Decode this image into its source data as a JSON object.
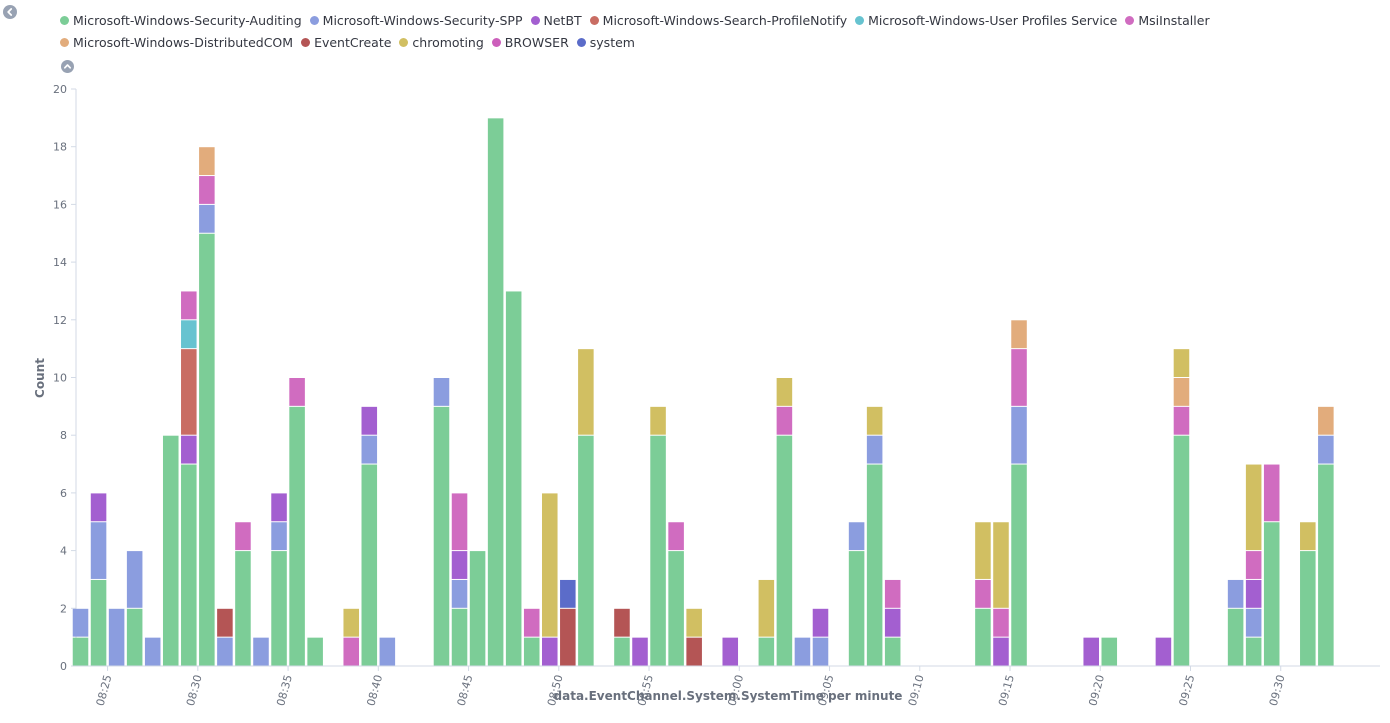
{
  "chart_data": {
    "type": "bar",
    "stacked": true,
    "title": "",
    "xlabel": "data.EventChannel.System.SystemTime per minute",
    "ylabel": "Count",
    "ylim": [
      0,
      20
    ],
    "yticks": [
      0,
      2,
      4,
      6,
      8,
      10,
      12,
      14,
      16,
      18,
      20
    ],
    "xlim": [
      8.25,
      80.5
    ],
    "xticks": [
      {
        "pos": 10,
        "label": "08:25"
      },
      {
        "pos": 15,
        "label": "08:30"
      },
      {
        "pos": 20,
        "label": "08:35"
      },
      {
        "pos": 25,
        "label": "08:40"
      },
      {
        "pos": 30,
        "label": "08:45"
      },
      {
        "pos": 35,
        "label": "08:50"
      },
      {
        "pos": 40,
        "label": "08:55"
      },
      {
        "pos": 45,
        "label": "09:00"
      },
      {
        "pos": 50,
        "label": "09:05"
      },
      {
        "pos": 55,
        "label": "09:10"
      },
      {
        "pos": 60,
        "label": "09:15"
      },
      {
        "pos": 65,
        "label": "09:20"
      },
      {
        "pos": 70,
        "label": "09:25"
      },
      {
        "pos": 75,
        "label": "09:30"
      }
    ],
    "series": [
      {
        "name": "Microsoft-Windows-Security-Auditing",
        "color": "#7ccd97"
      },
      {
        "name": "Microsoft-Windows-Security-SPP",
        "color": "#8b9ddf"
      },
      {
        "name": "NetBT",
        "color": "#a35fd0"
      },
      {
        "name": "Microsoft-Windows-Search-ProfileNotify",
        "color": "#c96d63"
      },
      {
        "name": "Microsoft-Windows-User Profiles Service",
        "color": "#67c3d0"
      },
      {
        "name": "MsiInstaller",
        "color": "#d06cc0"
      },
      {
        "name": "Microsoft-Windows-DistributedCOM",
        "color": "#e2ac7c"
      },
      {
        "name": "EventCreate",
        "color": "#b45555"
      },
      {
        "name": "chromoting",
        "color": "#d1bf62"
      },
      {
        "name": "BROWSER",
        "color": "#cc5fbb"
      },
      {
        "name": "system",
        "color": "#5b6cc9"
      }
    ],
    "bars": [
      {
        "x": 8.5,
        "segments": [
          [
            "Microsoft-Windows-Security-Auditing",
            1
          ],
          [
            "Microsoft-Windows-Security-SPP",
            1
          ]
        ]
      },
      {
        "x": 9.5,
        "segments": [
          [
            "Microsoft-Windows-Security-Auditing",
            3
          ],
          [
            "Microsoft-Windows-Security-SPP",
            2
          ],
          [
            "NetBT",
            1
          ]
        ]
      },
      {
        "x": 10.5,
        "segments": [
          [
            "Microsoft-Windows-Security-SPP",
            2
          ]
        ]
      },
      {
        "x": 11.5,
        "segments": [
          [
            "Microsoft-Windows-Security-Auditing",
            2
          ],
          [
            "Microsoft-Windows-Security-SPP",
            2
          ]
        ]
      },
      {
        "x": 12.5,
        "segments": [
          [
            "Microsoft-Windows-Security-SPP",
            1
          ]
        ]
      },
      {
        "x": 13.5,
        "segments": [
          [
            "Microsoft-Windows-Security-Auditing",
            8
          ]
        ]
      },
      {
        "x": 14.5,
        "segments": [
          [
            "Microsoft-Windows-Security-Auditing",
            7
          ],
          [
            "NetBT",
            1
          ],
          [
            "Microsoft-Windows-Search-ProfileNotify",
            3
          ],
          [
            "Microsoft-Windows-User Profiles Service",
            1
          ],
          [
            "MsiInstaller",
            1
          ]
        ]
      },
      {
        "x": 15.5,
        "segments": [
          [
            "Microsoft-Windows-Security-Auditing",
            15
          ],
          [
            "Microsoft-Windows-Security-SPP",
            1
          ],
          [
            "MsiInstaller",
            1
          ],
          [
            "Microsoft-Windows-DistributedCOM",
            1
          ]
        ]
      },
      {
        "x": 16.5,
        "segments": [
          [
            "Microsoft-Windows-Security-SPP",
            1
          ],
          [
            "EventCreate",
            1
          ]
        ]
      },
      {
        "x": 17.5,
        "segments": [
          [
            "Microsoft-Windows-Security-Auditing",
            4
          ],
          [
            "MsiInstaller",
            1
          ]
        ]
      },
      {
        "x": 18.5,
        "segments": [
          [
            "Microsoft-Windows-Security-SPP",
            1
          ]
        ]
      },
      {
        "x": 19.5,
        "segments": [
          [
            "Microsoft-Windows-Security-Auditing",
            4
          ],
          [
            "Microsoft-Windows-Security-SPP",
            1
          ],
          [
            "NetBT",
            1
          ]
        ]
      },
      {
        "x": 20.5,
        "segments": [
          [
            "Microsoft-Windows-Security-Auditing",
            9
          ],
          [
            "MsiInstaller",
            1
          ]
        ]
      },
      {
        "x": 21.5,
        "segments": [
          [
            "Microsoft-Windows-Security-Auditing",
            1
          ]
        ]
      },
      {
        "x": 23.5,
        "segments": [
          [
            "MsiInstaller",
            1
          ],
          [
            "chromoting",
            1
          ]
        ]
      },
      {
        "x": 24.5,
        "segments": [
          [
            "Microsoft-Windows-Security-Auditing",
            7
          ],
          [
            "Microsoft-Windows-Security-SPP",
            1
          ],
          [
            "NetBT",
            1
          ]
        ]
      },
      {
        "x": 25.5,
        "segments": [
          [
            "Microsoft-Windows-Security-SPP",
            1
          ]
        ]
      },
      {
        "x": 28.5,
        "segments": [
          [
            "Microsoft-Windows-Security-Auditing",
            9
          ],
          [
            "Microsoft-Windows-Security-SPP",
            1
          ]
        ]
      },
      {
        "x": 29.5,
        "segments": [
          [
            "Microsoft-Windows-Security-Auditing",
            2
          ],
          [
            "Microsoft-Windows-Security-SPP",
            1
          ],
          [
            "NetBT",
            1
          ],
          [
            "MsiInstaller",
            2
          ]
        ]
      },
      {
        "x": 30.5,
        "segments": [
          [
            "Microsoft-Windows-Security-Auditing",
            4
          ]
        ]
      },
      {
        "x": 31.5,
        "segments": [
          [
            "Microsoft-Windows-Security-Auditing",
            19
          ]
        ]
      },
      {
        "x": 32.5,
        "segments": [
          [
            "Microsoft-Windows-Security-Auditing",
            13
          ]
        ]
      },
      {
        "x": 33.5,
        "segments": [
          [
            "Microsoft-Windows-Security-Auditing",
            1
          ],
          [
            "MsiInstaller",
            1
          ]
        ]
      },
      {
        "x": 34.5,
        "segments": [
          [
            "NetBT",
            1
          ],
          [
            "chromoting",
            5
          ]
        ]
      },
      {
        "x": 35.5,
        "segments": [
          [
            "EventCreate",
            2
          ],
          [
            "system",
            1
          ]
        ]
      },
      {
        "x": 36.5,
        "segments": [
          [
            "Microsoft-Windows-Security-Auditing",
            8
          ],
          [
            "chromoting",
            3
          ]
        ]
      },
      {
        "x": 38.5,
        "segments": [
          [
            "Microsoft-Windows-Security-Auditing",
            1
          ],
          [
            "EventCreate",
            1
          ]
        ]
      },
      {
        "x": 39.5,
        "segments": [
          [
            "NetBT",
            1
          ]
        ]
      },
      {
        "x": 40.5,
        "segments": [
          [
            "Microsoft-Windows-Security-Auditing",
            8
          ],
          [
            "chromoting",
            1
          ]
        ]
      },
      {
        "x": 41.5,
        "segments": [
          [
            "Microsoft-Windows-Security-Auditing",
            4
          ],
          [
            "MsiInstaller",
            1
          ]
        ]
      },
      {
        "x": 42.5,
        "segments": [
          [
            "EventCreate",
            1
          ],
          [
            "chromoting",
            1
          ]
        ]
      },
      {
        "x": 44.5,
        "segments": [
          [
            "NetBT",
            1
          ]
        ]
      },
      {
        "x": 46.5,
        "segments": [
          [
            "Microsoft-Windows-Security-Auditing",
            1
          ],
          [
            "chromoting",
            2
          ]
        ]
      },
      {
        "x": 47.5,
        "segments": [
          [
            "Microsoft-Windows-Security-Auditing",
            8
          ],
          [
            "MsiInstaller",
            1
          ],
          [
            "chromoting",
            1
          ]
        ]
      },
      {
        "x": 48.5,
        "segments": [
          [
            "Microsoft-Windows-Security-SPP",
            1
          ]
        ]
      },
      {
        "x": 49.5,
        "segments": [
          [
            "Microsoft-Windows-Security-SPP",
            1
          ],
          [
            "NetBT",
            1
          ]
        ]
      },
      {
        "x": 51.5,
        "segments": [
          [
            "Microsoft-Windows-Security-Auditing",
            4
          ],
          [
            "Microsoft-Windows-Security-SPP",
            1
          ]
        ]
      },
      {
        "x": 52.5,
        "segments": [
          [
            "Microsoft-Windows-Security-Auditing",
            7
          ],
          [
            "Microsoft-Windows-Security-SPP",
            1
          ],
          [
            "chromoting",
            1
          ]
        ]
      },
      {
        "x": 53.5,
        "segments": [
          [
            "Microsoft-Windows-Security-Auditing",
            1
          ],
          [
            "NetBT",
            1
          ],
          [
            "MsiInstaller",
            1
          ]
        ]
      },
      {
        "x": 58.5,
        "segments": [
          [
            "Microsoft-Windows-Security-Auditing",
            2
          ],
          [
            "MsiInstaller",
            1
          ],
          [
            "chromoting",
            2
          ]
        ]
      },
      {
        "x": 59.5,
        "segments": [
          [
            "NetBT",
            1
          ],
          [
            "MsiInstaller",
            1
          ],
          [
            "chromoting",
            3
          ]
        ]
      },
      {
        "x": 60.5,
        "segments": [
          [
            "Microsoft-Windows-Security-Auditing",
            7
          ],
          [
            "Microsoft-Windows-Security-SPP",
            2
          ],
          [
            "MsiInstaller",
            2
          ],
          [
            "Microsoft-Windows-DistributedCOM",
            1
          ]
        ]
      },
      {
        "x": 64.5,
        "segments": [
          [
            "NetBT",
            1
          ]
        ]
      },
      {
        "x": 65.5,
        "segments": [
          [
            "Microsoft-Windows-Security-Auditing",
            1
          ]
        ]
      },
      {
        "x": 68.5,
        "segments": [
          [
            "NetBT",
            1
          ]
        ]
      },
      {
        "x": 69.5,
        "segments": [
          [
            "Microsoft-Windows-Security-Auditing",
            8
          ],
          [
            "MsiInstaller",
            1
          ],
          [
            "Microsoft-Windows-DistributedCOM",
            1
          ],
          [
            "chromoting",
            1
          ]
        ]
      },
      {
        "x": 72.5,
        "segments": [
          [
            "Microsoft-Windows-Security-Auditing",
            2
          ],
          [
            "Microsoft-Windows-Security-SPP",
            1
          ]
        ]
      },
      {
        "x": 73.5,
        "segments": [
          [
            "Microsoft-Windows-Security-Auditing",
            1
          ],
          [
            "Microsoft-Windows-Security-SPP",
            1
          ],
          [
            "NetBT",
            1
          ],
          [
            "MsiInstaller",
            1
          ],
          [
            "chromoting",
            3
          ]
        ]
      },
      {
        "x": 74.5,
        "segments": [
          [
            "Microsoft-Windows-Security-Auditing",
            5
          ],
          [
            "MsiInstaller",
            2
          ]
        ]
      },
      {
        "x": 76.5,
        "segments": [
          [
            "Microsoft-Windows-Security-Auditing",
            4
          ],
          [
            "chromoting",
            1
          ]
        ]
      },
      {
        "x": 77.5,
        "segments": [
          [
            "Microsoft-Windows-Security-Auditing",
            7
          ],
          [
            "Microsoft-Windows-Security-SPP",
            1
          ],
          [
            "Microsoft-Windows-DistributedCOM",
            1
          ]
        ]
      }
    ]
  }
}
